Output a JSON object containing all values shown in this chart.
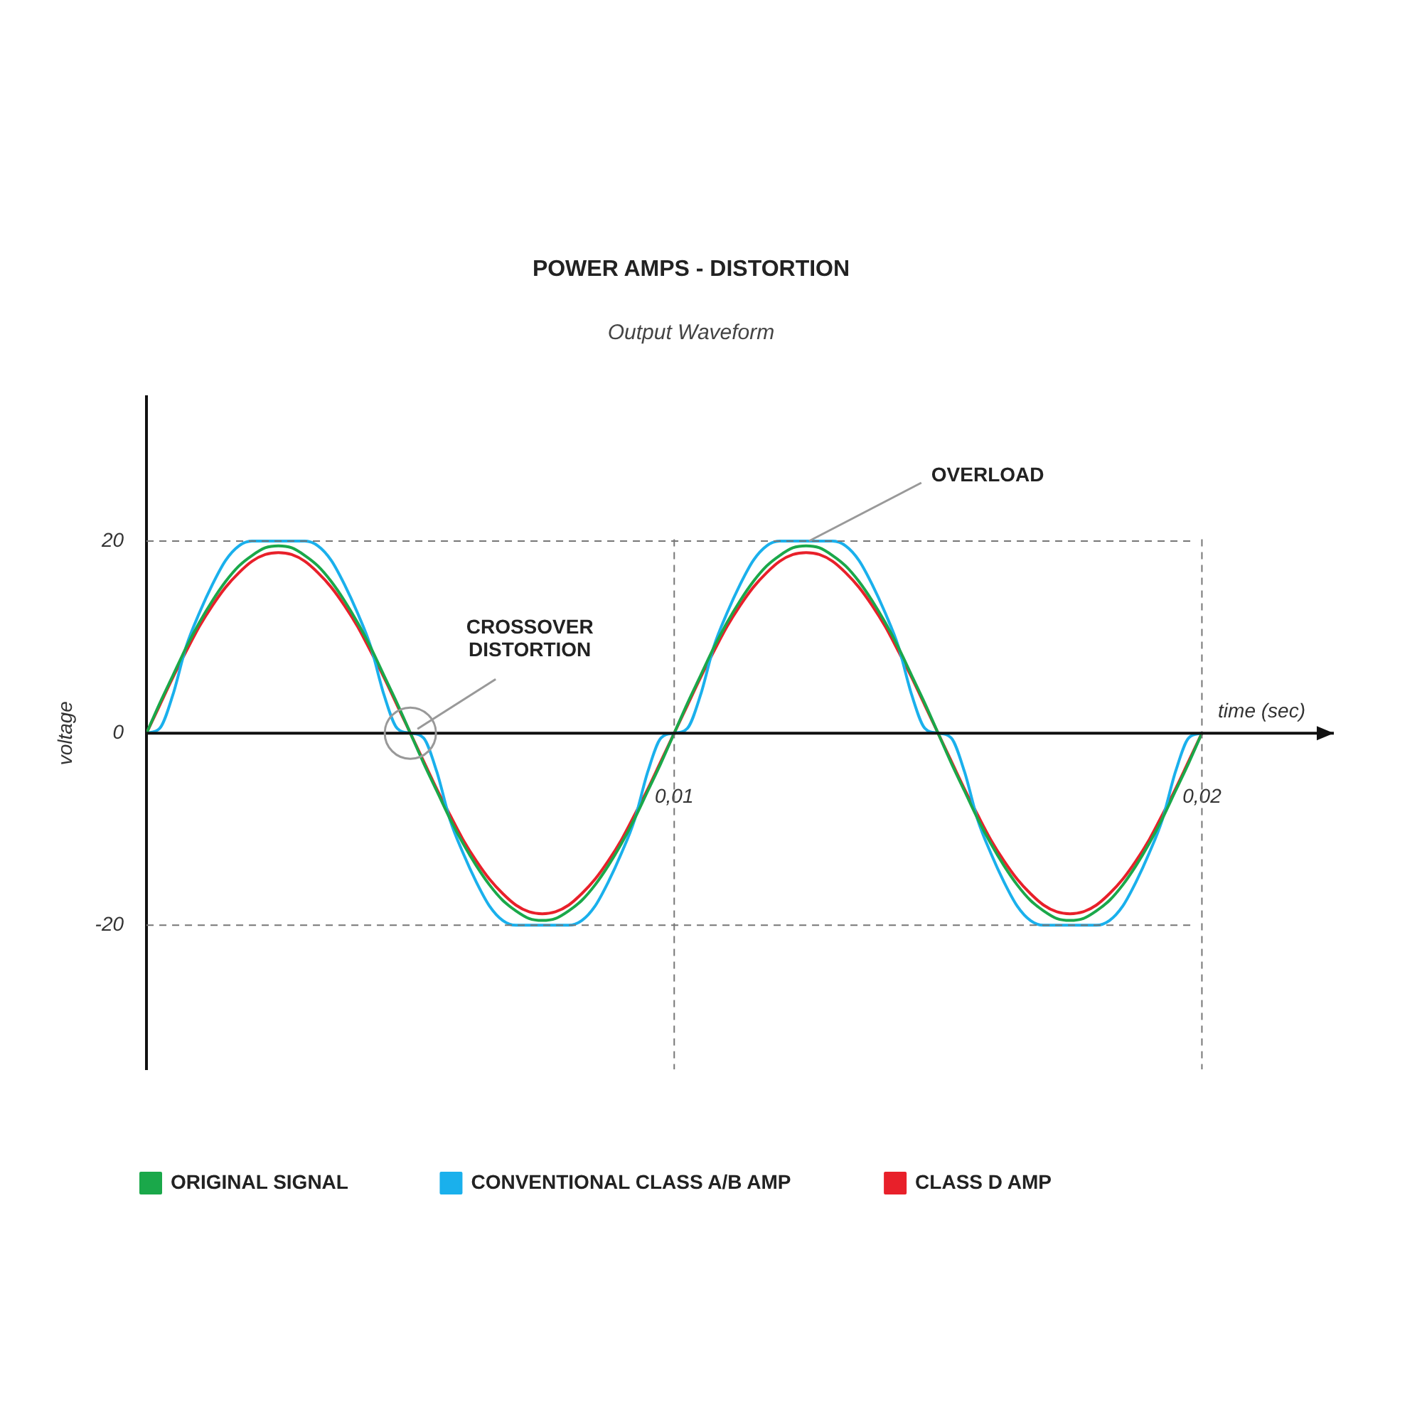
{
  "chart_data": {
    "type": "line",
    "title": "POWER AMPS - DISTORTION",
    "subtitle": "Output Waveform",
    "xlabel": "time (sec)",
    "ylabel": "voltage",
    "x": [
      0,
      0.00025,
      0.0005,
      0.00075,
      0.001,
      0.00125,
      0.0015,
      0.00175,
      0.002,
      0.00225,
      0.0025,
      0.00275,
      0.003,
      0.00325,
      0.0035,
      0.00375,
      0.004,
      0.00425,
      0.0045,
      0.00475,
      0.005,
      0.00525,
      0.0055,
      0.00575,
      0.006,
      0.00625,
      0.0065,
      0.00675,
      0.007,
      0.00725,
      0.0075,
      0.00775,
      0.008,
      0.00825,
      0.0085,
      0.00875,
      0.009,
      0.00925,
      0.0095,
      0.00975,
      0.01,
      0.01025,
      0.0105,
      0.01075,
      0.011,
      0.01125,
      0.0115,
      0.01175,
      0.012,
      0.01225,
      0.0125,
      0.01275,
      0.013,
      0.01325,
      0.0135,
      0.01375,
      0.014,
      0.01425,
      0.0145,
      0.01475,
      0.015,
      0.01525,
      0.0155,
      0.01575,
      0.016,
      0.01625,
      0.0165,
      0.01675,
      0.017,
      0.01725,
      0.0175,
      0.01775,
      0.018,
      0.01825,
      0.0185,
      0.01875,
      0.019,
      0.01925,
      0.0195,
      0.01975,
      0.02
    ],
    "series": [
      {
        "name": "ORIGINAL SIGNAL",
        "color": "#1aa84a",
        "values": [
          0,
          3.1,
          6.0,
          8.9,
          11.5,
          13.8,
          15.8,
          17.4,
          18.5,
          19.3,
          19.5,
          19.3,
          18.5,
          17.4,
          15.8,
          13.8,
          11.5,
          8.9,
          6.0,
          3.1,
          0,
          -3.1,
          -6.0,
          -8.9,
          -11.5,
          -13.8,
          -15.8,
          -17.4,
          -18.5,
          -19.3,
          -19.5,
          -19.3,
          -18.5,
          -17.4,
          -15.8,
          -13.8,
          -11.5,
          -8.9,
          -6.0,
          -3.1,
          0,
          3.1,
          6.0,
          8.9,
          11.5,
          13.8,
          15.8,
          17.4,
          18.5,
          19.3,
          19.5,
          19.3,
          18.5,
          17.4,
          15.8,
          13.8,
          11.5,
          8.9,
          6.0,
          3.1,
          0,
          -3.1,
          -6.0,
          -8.9,
          -11.5,
          -13.8,
          -15.8,
          -17.4,
          -18.5,
          -19.3,
          -19.5,
          -19.3,
          -18.5,
          -17.4,
          -15.8,
          -13.8,
          -11.5,
          -8.9,
          -6.0,
          -3.1,
          0
        ]
      },
      {
        "name": "CONVENTIONAL CLASS A/B AMP",
        "color": "#1ab0ec",
        "values": [
          0,
          0.5,
          4,
          9,
          12.5,
          15.5,
          18,
          19.5,
          20,
          20,
          20,
          20,
          20,
          19.5,
          18,
          15.5,
          12.5,
          9,
          4,
          0.5,
          0,
          -0.5,
          -4,
          -9,
          -12.5,
          -15.5,
          -18,
          -19.5,
          -20,
          -20,
          -20,
          -20,
          -20,
          -19.5,
          -18,
          -15.5,
          -12.5,
          -9,
          -4,
          -0.5,
          0,
          0.5,
          4,
          9,
          12.5,
          15.5,
          18,
          19.5,
          20,
          20,
          20,
          20,
          20,
          19.5,
          18,
          15.5,
          12.5,
          9,
          4,
          0.5,
          0,
          -0.5,
          -4,
          -9,
          -12.5,
          -15.5,
          -18,
          -19.5,
          -20,
          -20,
          -20,
          -20,
          -20,
          -19.5,
          -18,
          -15.5,
          -12.5,
          -9,
          -4,
          -0.5,
          0
        ]
      },
      {
        "name": "CLASS D AMP",
        "color": "#e8202a",
        "values": [
          0,
          2.9,
          5.8,
          8.5,
          11.1,
          13.3,
          15.2,
          16.7,
          17.9,
          18.6,
          18.8,
          18.6,
          17.9,
          16.7,
          15.2,
          13.3,
          11.1,
          8.5,
          5.8,
          2.9,
          0,
          -2.9,
          -5.8,
          -8.5,
          -11.1,
          -13.3,
          -15.2,
          -16.7,
          -17.9,
          -18.6,
          -18.8,
          -18.6,
          -17.9,
          -16.7,
          -15.2,
          -13.3,
          -11.1,
          -8.5,
          -5.8,
          -2.9,
          0,
          2.9,
          5.8,
          8.5,
          11.1,
          13.3,
          15.2,
          16.7,
          17.9,
          18.6,
          18.8,
          18.6,
          17.9,
          16.7,
          15.2,
          13.3,
          11.1,
          8.5,
          5.8,
          2.9,
          0,
          -2.9,
          -5.8,
          -8.5,
          -11.1,
          -13.3,
          -15.2,
          -16.7,
          -17.9,
          -18.6,
          -18.8,
          -18.6,
          -17.9,
          -16.7,
          -15.2,
          -13.3,
          -11.1,
          -8.5,
          -5.8,
          -2.9,
          0
        ]
      }
    ],
    "xlim": [
      0,
      0.0225
    ],
    "xticks": [
      {
        "value": 0.01,
        "label": "0,01"
      },
      {
        "value": 0.02,
        "label": "0,02"
      }
    ],
    "ylim": [
      -35,
      35
    ],
    "yticks": [
      -20,
      0,
      20
    ],
    "grid": true,
    "legend": "bottom",
    "annotations": [
      {
        "text": "CROSSOVER DISTORTION",
        "x": 0.005,
        "y": 0
      },
      {
        "text": "OVERLOAD",
        "x": 0.0125,
        "y": 20
      }
    ]
  }
}
